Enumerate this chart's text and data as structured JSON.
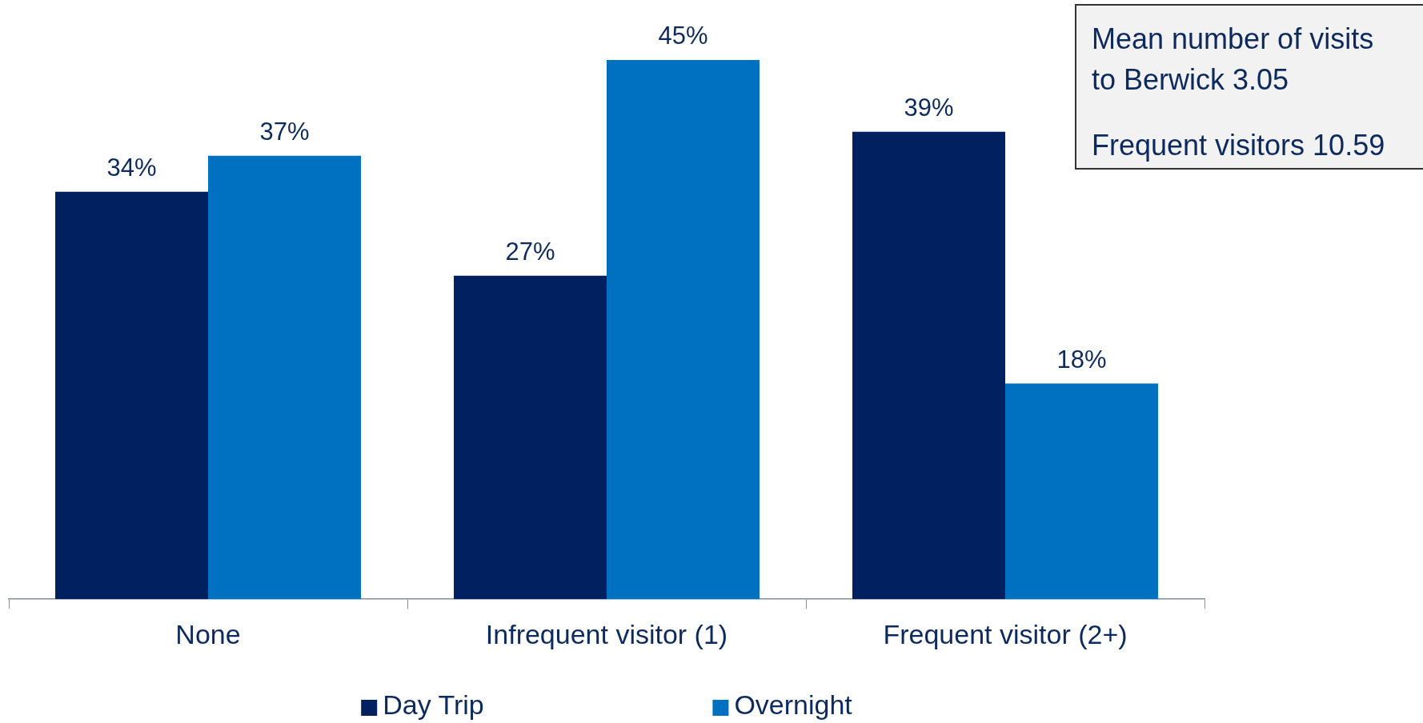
{
  "chart_data": {
    "type": "bar",
    "categories": [
      "None",
      "Infrequent visitor (1)",
      "Frequent visitor (2+)"
    ],
    "series": [
      {
        "name": "Day Trip",
        "color": "#002060",
        "values": [
          34,
          27,
          39
        ],
        "value_labels": [
          "34%",
          "27%",
          "39%"
        ]
      },
      {
        "name": "Overnight",
        "color": "#0070c0",
        "values": [
          37,
          45,
          18
        ],
        "value_labels": [
          "37%",
          "45%",
          "18%"
        ]
      }
    ],
    "legend": "bottom",
    "annotations": [
      "Mean number of visits to Berwick 3.05",
      "Frequent visitors 10.59"
    ]
  }
}
